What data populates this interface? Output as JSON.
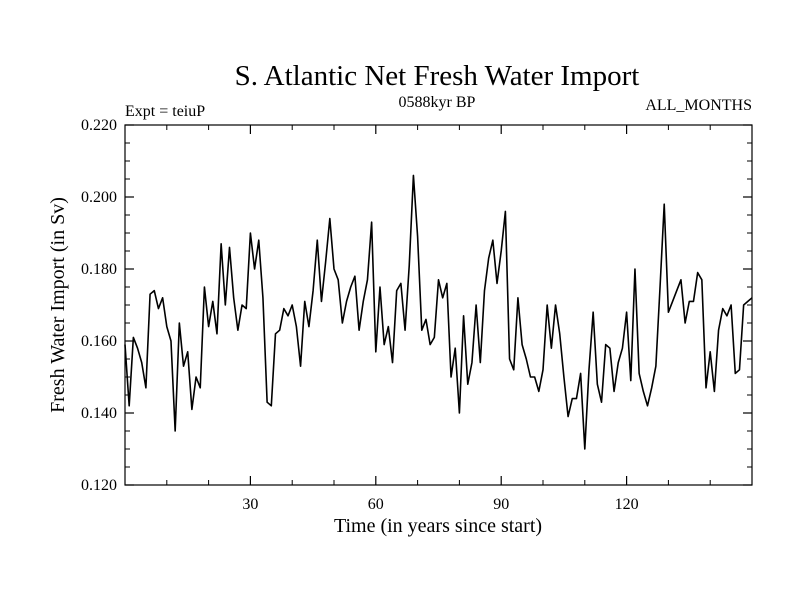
{
  "chart_data": {
    "type": "line",
    "title": "S. Atlantic Net Fresh Water Import",
    "subtitle_left": "Expt = teiuP",
    "subtitle_center": "0588kyr BP",
    "subtitle_right": "ALL_MONTHS",
    "xlabel": "Time (in years since start)",
    "ylabel": "Fresh Water Import (in Sv)",
    "xlim": [
      0,
      150
    ],
    "ylim": [
      0.12,
      0.22
    ],
    "x_ticks": [
      30,
      60,
      90,
      120
    ],
    "x_tick_labels": [
      "30",
      "60",
      "90",
      "120"
    ],
    "y_ticks": [
      0.12,
      0.14,
      0.16,
      0.18,
      0.2,
      0.22
    ],
    "y_tick_labels": [
      "0.120",
      "0.140",
      "0.160",
      "0.180",
      "0.200",
      "0.220"
    ],
    "grid": false,
    "series": [
      {
        "name": "Net Fresh Water Import",
        "color": "#000000",
        "x": [
          0,
          1,
          2,
          3,
          4,
          5,
          6,
          7,
          8,
          9,
          10,
          11,
          12,
          13,
          14,
          15,
          16,
          17,
          18,
          19,
          20,
          21,
          22,
          23,
          24,
          25,
          26,
          27,
          28,
          29,
          30,
          31,
          32,
          33,
          34,
          35,
          36,
          37,
          38,
          39,
          40,
          41,
          42,
          43,
          44,
          45,
          46,
          47,
          48,
          49,
          50,
          51,
          52,
          53,
          54,
          55,
          56,
          57,
          58,
          59,
          60,
          61,
          62,
          63,
          64,
          65,
          66,
          67,
          68,
          69,
          70,
          71,
          72,
          73,
          74,
          75,
          76,
          77,
          78,
          79,
          80,
          81,
          82,
          83,
          84,
          85,
          86,
          87,
          88,
          89,
          90,
          91,
          92,
          93,
          94,
          95,
          96,
          97,
          98,
          99,
          100,
          101,
          102,
          103,
          104,
          105,
          106,
          107,
          108,
          109,
          110,
          111,
          112,
          113,
          114,
          115,
          116,
          117,
          118,
          119,
          120,
          121,
          122,
          123,
          124,
          125,
          126,
          127,
          128,
          129,
          130,
          131,
          132,
          133,
          134,
          135,
          136,
          137,
          138,
          139,
          140,
          141,
          142,
          143,
          144,
          145,
          146,
          147,
          148,
          149,
          150
        ],
        "values": [
          0.159,
          0.142,
          0.161,
          0.158,
          0.154,
          0.147,
          0.173,
          0.174,
          0.169,
          0.172,
          0.164,
          0.16,
          0.135,
          0.165,
          0.153,
          0.157,
          0.141,
          0.15,
          0.147,
          0.175,
          0.164,
          0.171,
          0.162,
          0.187,
          0.17,
          0.186,
          0.172,
          0.163,
          0.17,
          0.169,
          0.19,
          0.18,
          0.188,
          0.172,
          0.143,
          0.142,
          0.162,
          0.163,
          0.169,
          0.167,
          0.17,
          0.164,
          0.153,
          0.171,
          0.164,
          0.174,
          0.188,
          0.171,
          0.182,
          0.194,
          0.18,
          0.177,
          0.165,
          0.171,
          0.175,
          0.178,
          0.163,
          0.171,
          0.177,
          0.193,
          0.157,
          0.175,
          0.159,
          0.164,
          0.154,
          0.174,
          0.176,
          0.163,
          0.181,
          0.206,
          0.189,
          0.163,
          0.166,
          0.159,
          0.161,
          0.177,
          0.172,
          0.176,
          0.15,
          0.158,
          0.14,
          0.167,
          0.148,
          0.154,
          0.17,
          0.154,
          0.174,
          0.183,
          0.188,
          0.176,
          0.185,
          0.196,
          0.155,
          0.152,
          0.172,
          0.159,
          0.155,
          0.15,
          0.15,
          0.146,
          0.152,
          0.17,
          0.158,
          0.17,
          0.162,
          0.15,
          0.139,
          0.144,
          0.144,
          0.151,
          0.13,
          0.152,
          0.168,
          0.148,
          0.143,
          0.159,
          0.158,
          0.146,
          0.154,
          0.158,
          0.168,
          0.149,
          0.18,
          0.151,
          0.146,
          0.142,
          0.147,
          0.153,
          0.175,
          0.198,
          0.168,
          0.171,
          0.174,
          0.177,
          0.165,
          0.171,
          0.171,
          0.179,
          0.177,
          0.147,
          0.157,
          0.146,
          0.163,
          0.169,
          0.167,
          0.17,
          0.151,
          0.152,
          0.17,
          0.171,
          0.172
        ]
      }
    ]
  }
}
